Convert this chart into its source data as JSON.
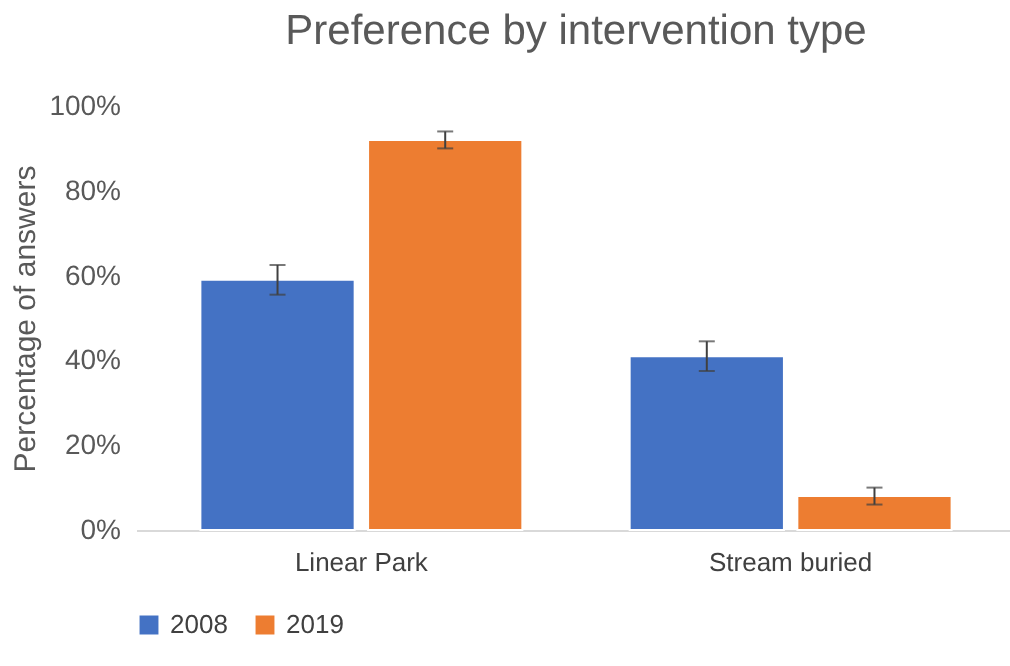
{
  "chart_data": {
    "type": "bar",
    "title": "Preference by intervention type",
    "ylabel": "Percentage of answers",
    "categories": [
      "Linear Park",
      "Stream buried"
    ],
    "series": [
      {
        "name": "2008",
        "color": "#4472c4",
        "values": [
          59,
          41
        ],
        "errors": [
          3.5,
          3.5
        ]
      },
      {
        "name": "2019",
        "color": "#ed7d31",
        "values": [
          92,
          8
        ],
        "errors": [
          2,
          2
        ]
      }
    ],
    "ylim": [
      0,
      100
    ],
    "yticks": [
      {
        "value": 0,
        "label": "0%"
      },
      {
        "value": 20,
        "label": "20%"
      },
      {
        "value": 40,
        "label": "40%"
      },
      {
        "value": 60,
        "label": "60%"
      },
      {
        "value": 80,
        "label": "80%"
      },
      {
        "value": 100,
        "label": "100%"
      }
    ],
    "grid": false,
    "legend": "bottom"
  }
}
